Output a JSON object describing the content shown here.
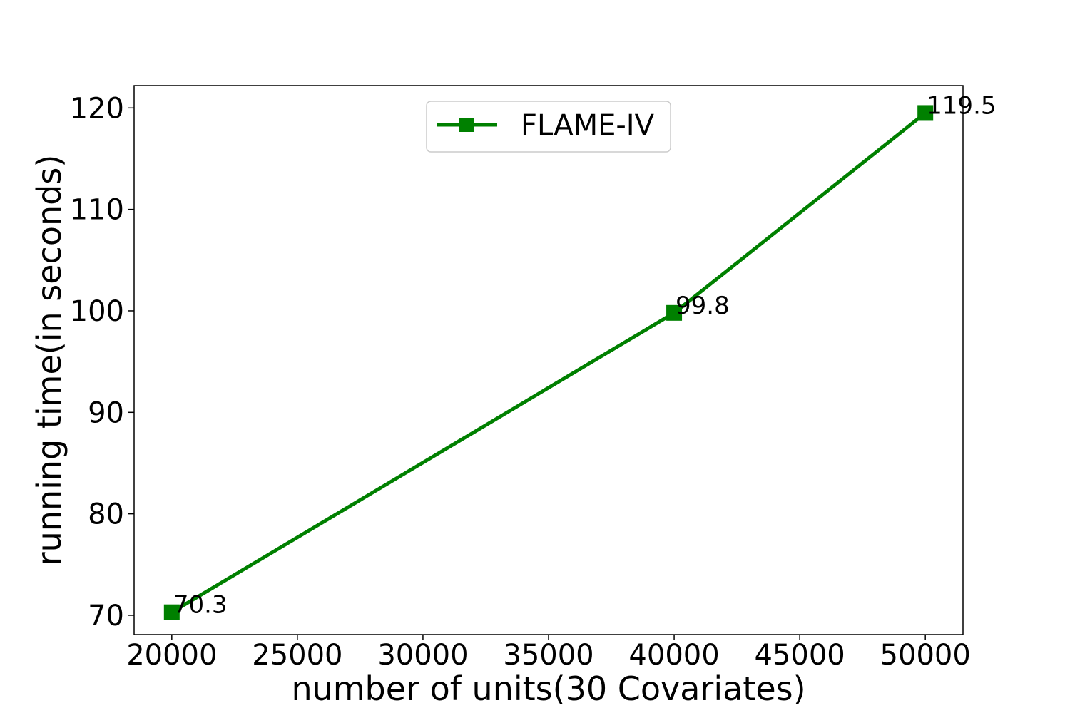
{
  "chart_data": {
    "type": "line",
    "title": "",
    "xlabel": "number of units(30 Covariates)",
    "ylabel": "running time(in seconds)",
    "x": [
      20000,
      40000,
      50000
    ],
    "series": [
      {
        "name": "FLAME-IV",
        "values": [
          70.3,
          99.8,
          119.5
        ],
        "labels": [
          "70.3",
          "99.8",
          "119.5"
        ],
        "color": "#008000",
        "marker": "square"
      }
    ],
    "xlim": [
      18500,
      51500
    ],
    "ylim": [
      68.1,
      122.2
    ],
    "xticks": [
      20000,
      25000,
      30000,
      35000,
      40000,
      45000,
      50000
    ],
    "xtick_labels": [
      "20000",
      "25000",
      "30000",
      "35000",
      "40000",
      "45000",
      "50000"
    ],
    "yticks": [
      70,
      80,
      90,
      100,
      110,
      120
    ],
    "ytick_labels": [
      "70",
      "80",
      "90",
      "100",
      "110",
      "120"
    ],
    "grid": false,
    "legend_position": "top-center"
  }
}
